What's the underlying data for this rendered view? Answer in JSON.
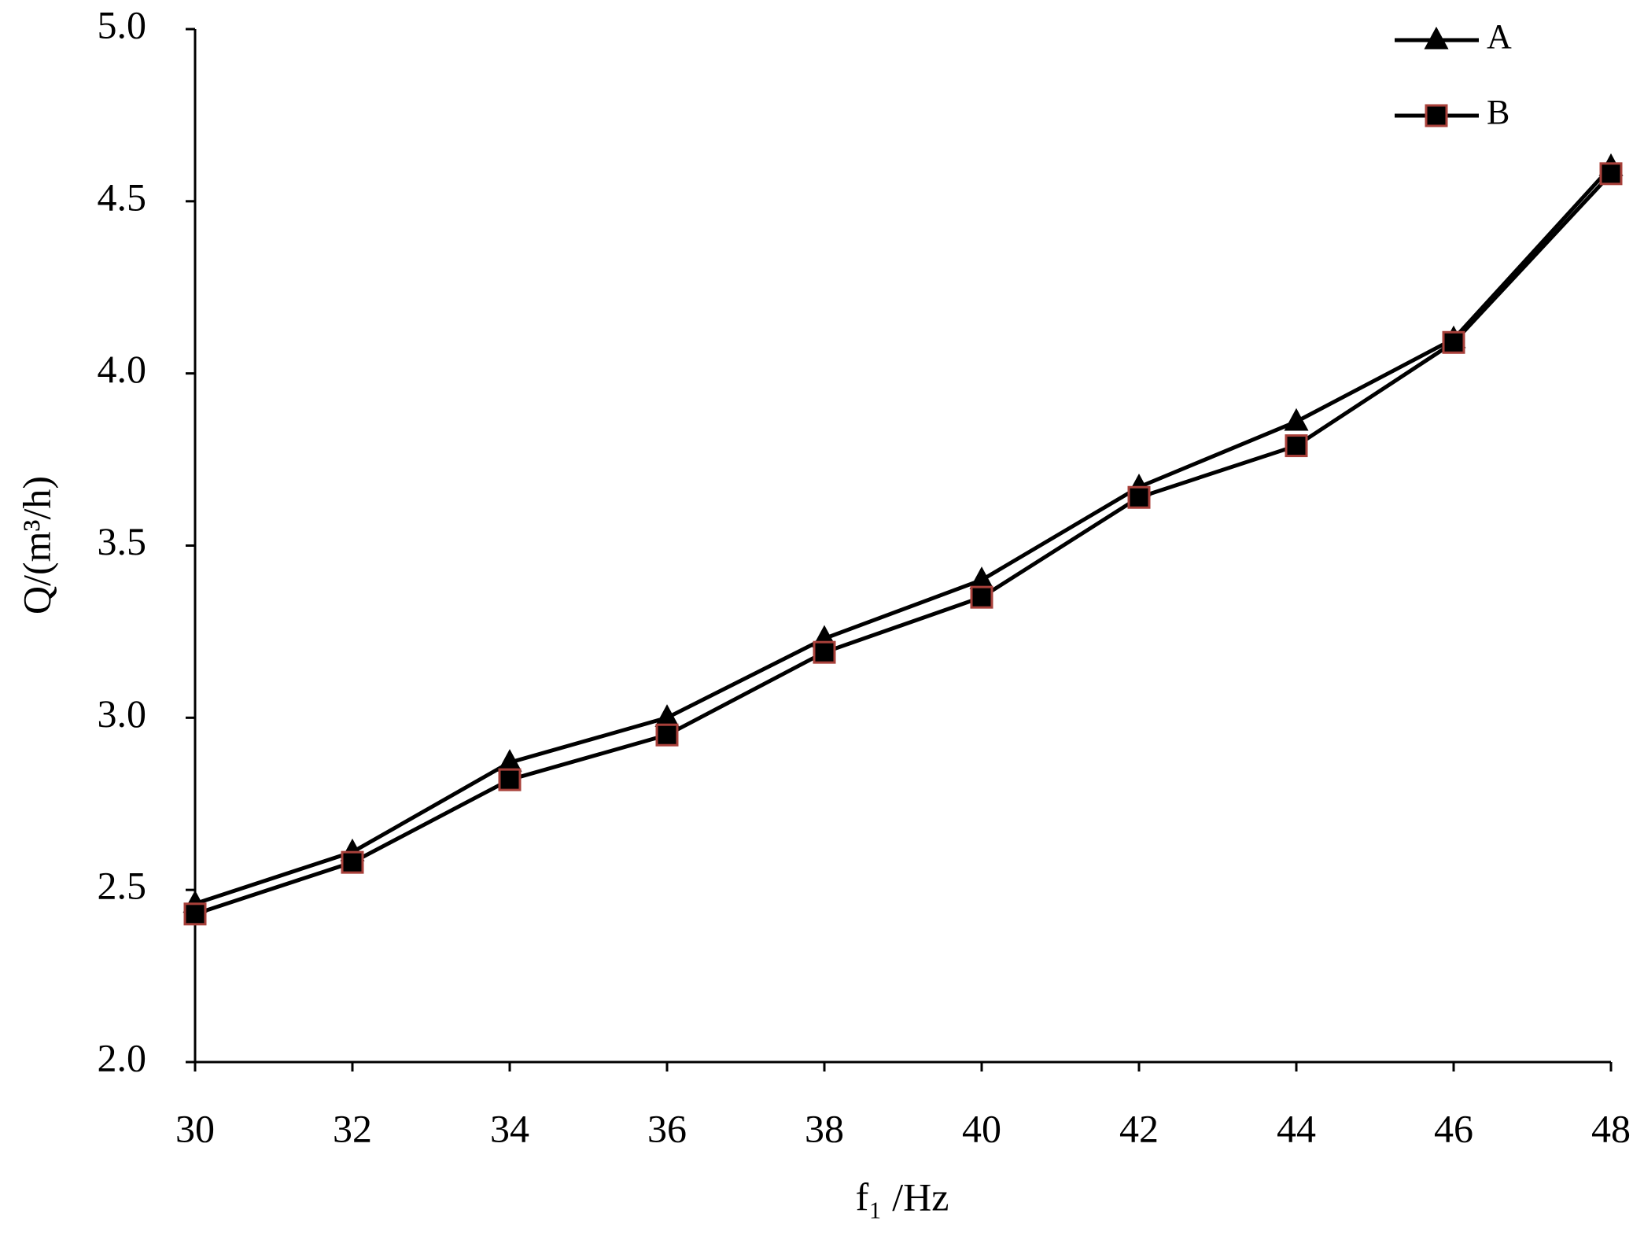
{
  "chart_data": {
    "type": "line",
    "x_label": "f₁ /Hz",
    "y_label": "Q/(m³/h)",
    "x": [
      30,
      32,
      34,
      36,
      38,
      40,
      42,
      44,
      46,
      48
    ],
    "xlim": [
      30,
      48
    ],
    "xticks": [
      30,
      32,
      34,
      36,
      38,
      40,
      42,
      44,
      46,
      48
    ],
    "ylim": [
      2,
      5
    ],
    "yticks": [
      {
        "value": 2,
        "label": "2.0"
      },
      2.5,
      {
        "value": 3,
        "label": "3.0"
      },
      3.5,
      {
        "value": 4,
        "label": "4.0"
      },
      4.5,
      {
        "value": 5,
        "label": "5.0"
      }
    ],
    "grid": false,
    "legend": "upper right",
    "series": [
      {
        "name": "A",
        "color": "#000000",
        "marker": "triangle",
        "marker_edge": "#000000",
        "values": [
          2.46,
          2.61,
          2.87,
          3.0,
          3.23,
          3.4,
          3.67,
          3.86,
          4.1,
          4.6
        ]
      },
      {
        "name": "B",
        "color": "#000000",
        "marker": "square",
        "marker_edge": "#a8403a",
        "values": [
          2.43,
          2.58,
          2.82,
          2.95,
          3.19,
          3.35,
          3.64,
          3.79,
          4.09,
          4.58
        ]
      }
    ]
  }
}
